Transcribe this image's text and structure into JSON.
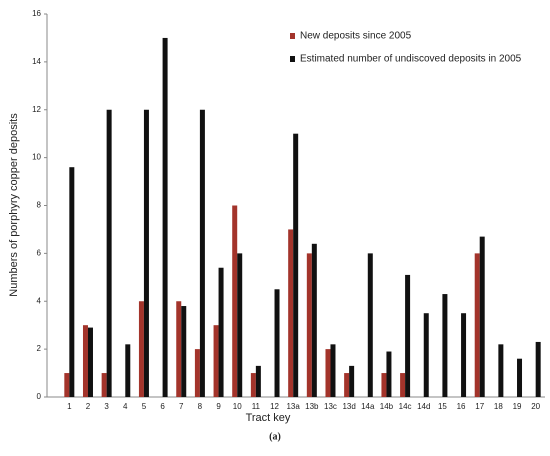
{
  "chart_data": {
    "type": "bar",
    "y_label": "Numbers of porphyry copper deposits",
    "x_label": "Tract key",
    "caption": "(a)",
    "categories": [
      "1",
      "2",
      "3",
      "4",
      "5",
      "6",
      "7",
      "8",
      "9",
      "10",
      "11",
      "12",
      "13a",
      "13b",
      "13c",
      "13d",
      "14a",
      "14b",
      "14c",
      "14d",
      "15",
      "16",
      "17",
      "18",
      "19",
      "20"
    ],
    "series": [
      {
        "name": "New deposits since 2005",
        "color": "#a3342b",
        "values": [
          1,
          3,
          1,
          0,
          4,
          0,
          4,
          2,
          3,
          8,
          1,
          0,
          7,
          6,
          2,
          1,
          0,
          1,
          1,
          0,
          0,
          0,
          6,
          0,
          0,
          0
        ]
      },
      {
        "name": "Estimated number of undiscoved deposits in 2005",
        "color": "#111111",
        "values": [
          9.6,
          2.9,
          12,
          2.2,
          12,
          15,
          3.8,
          12,
          5.4,
          6,
          1.3,
          4.5,
          11,
          6.4,
          2.2,
          1.3,
          6,
          1.9,
          5.1,
          3.5,
          4.3,
          3.5,
          6.7,
          2.2,
          1.6,
          2.3
        ]
      }
    ],
    "ylim": [
      0,
      16
    ],
    "yticks": [
      0,
      2,
      4,
      6,
      8,
      10,
      12,
      14,
      16
    ],
    "legend": "top-right"
  }
}
